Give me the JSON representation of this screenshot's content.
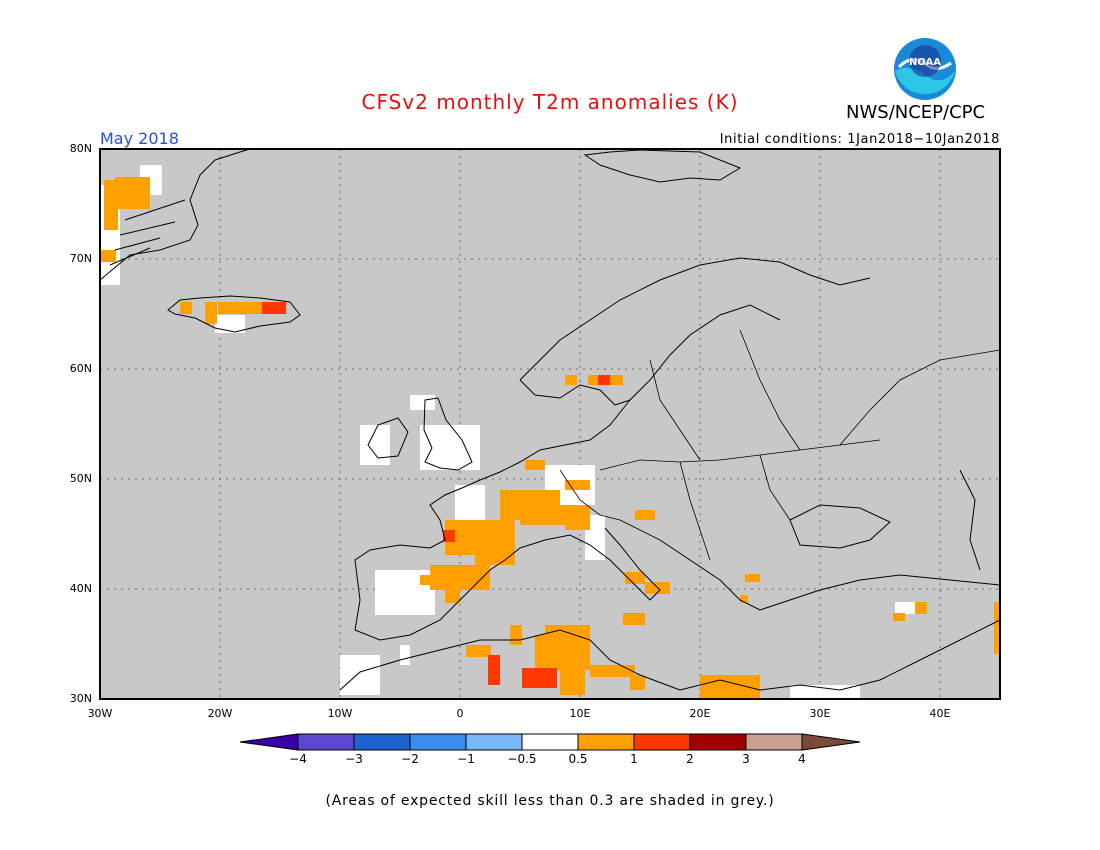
{
  "header": {
    "title": "CFSv2 monthly T2m anomalies (K)",
    "agency": "NWS/NCEP/CPC",
    "month": "May 2018",
    "initial_conditions": "Initial conditions: 1Jan2018−10Jan2018",
    "logo_text": "NOAA"
  },
  "map": {
    "lat_labels": [
      "80N",
      "70N",
      "60N",
      "50N",
      "40N",
      "30N"
    ],
    "lon_labels": [
      "30W",
      "20W",
      "10W",
      "0",
      "10E",
      "20E",
      "30E",
      "40E"
    ],
    "background_color": "#c8c8c8",
    "land_outline_color": "#000000",
    "anomaly_areas": [
      {
        "region": "Greenland east coast",
        "category": "0.5-1"
      },
      {
        "region": "Iceland",
        "category": "0.5-1"
      },
      {
        "region": "Iceland southeast",
        "category": "1-2"
      },
      {
        "region": "Scandinavia south",
        "category": "0.5-1"
      },
      {
        "region": "Norway south",
        "category": "1-2"
      },
      {
        "region": "France and Alps",
        "category": "0.5-1"
      },
      {
        "region": "Spain east",
        "category": "0.5-1"
      },
      {
        "region": "Italy south",
        "category": "0.5-1"
      },
      {
        "region": "North Africa",
        "category": "0.5-1"
      },
      {
        "region": "Algeria",
        "category": "1-2"
      },
      {
        "region": "Libya coast",
        "category": "0.5-1"
      },
      {
        "region": "Turkey east",
        "category": "0.5-1"
      },
      {
        "region": "British Isles",
        "category": "-0.5-0.5"
      },
      {
        "region": "Iberia west",
        "category": "-0.5-0.5"
      }
    ]
  },
  "colorbar": {
    "labels": [
      "−4",
      "−3",
      "−2",
      "−1",
      "−0.5",
      "0.5",
      "1",
      "2",
      "3",
      "4"
    ],
    "colors": [
      "#3a00a8",
      "#5a48d0",
      "#1e62d0",
      "#3c8cf0",
      "#78b8f8",
      "#ffffff",
      "#ffa000",
      "#ff3800",
      "#a00000",
      "#c8a090",
      "#7a4a3a"
    ]
  },
  "footnote": "(Areas of expected skill less than 0.3 are shaded in grey.)"
}
